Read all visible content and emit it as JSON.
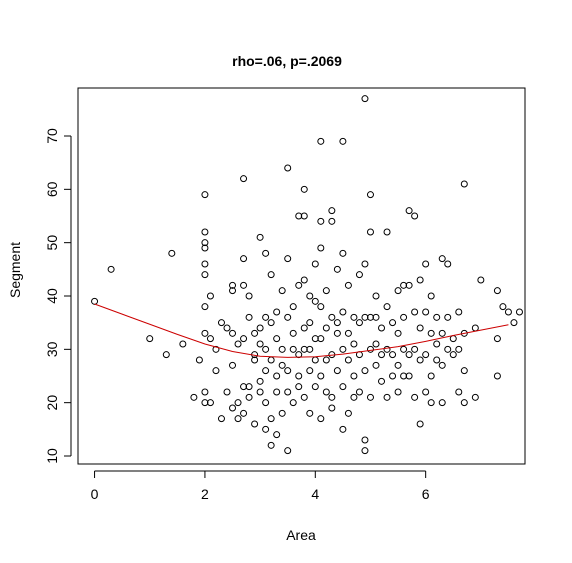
{
  "chart_data": {
    "type": "scatter",
    "title": "rho=.06, p=.2069",
    "xlabel": "Area",
    "ylabel": "Segment",
    "xlim": [
      -0.3,
      7.8
    ],
    "ylim": [
      8.5,
      79
    ],
    "xticks": [
      0,
      2,
      4,
      6
    ],
    "yticks": [
      10,
      20,
      30,
      40,
      50,
      60,
      70
    ],
    "grid": false,
    "legend": "none",
    "marker": "open-circle",
    "colors": {
      "points": "#000000",
      "smooth": "#cc0000",
      "frame": "#000000"
    },
    "points": [
      [
        0.0,
        39
      ],
      [
        0.3,
        45
      ],
      [
        1.0,
        32
      ],
      [
        1.3,
        29
      ],
      [
        1.4,
        48
      ],
      [
        1.6,
        31
      ],
      [
        1.8,
        21
      ],
      [
        1.9,
        28
      ],
      [
        2.0,
        59
      ],
      [
        2.0,
        52
      ],
      [
        2.0,
        50
      ],
      [
        2.0,
        49
      ],
      [
        2.0,
        46
      ],
      [
        2.0,
        44
      ],
      [
        2.0,
        38
      ],
      [
        2.0,
        33
      ],
      [
        2.0,
        22
      ],
      [
        2.0,
        20
      ],
      [
        2.1,
        20
      ],
      [
        2.1,
        40
      ],
      [
        2.1,
        32
      ],
      [
        2.2,
        26
      ],
      [
        2.2,
        30
      ],
      [
        2.3,
        35
      ],
      [
        2.3,
        17
      ],
      [
        2.4,
        22
      ],
      [
        2.4,
        34
      ],
      [
        2.5,
        42
      ],
      [
        2.5,
        41
      ],
      [
        2.5,
        33
      ],
      [
        2.5,
        27
      ],
      [
        2.5,
        19
      ],
      [
        2.6,
        31
      ],
      [
        2.6,
        17
      ],
      [
        2.6,
        20
      ],
      [
        2.7,
        62
      ],
      [
        2.7,
        47
      ],
      [
        2.7,
        42
      ],
      [
        2.7,
        32
      ],
      [
        2.7,
        23
      ],
      [
        2.7,
        18
      ],
      [
        2.8,
        40
      ],
      [
        2.8,
        36
      ],
      [
        2.8,
        23
      ],
      [
        2.8,
        21
      ],
      [
        2.9,
        29
      ],
      [
        2.9,
        28
      ],
      [
        2.9,
        33
      ],
      [
        2.9,
        16
      ],
      [
        3.0,
        51
      ],
      [
        3.0,
        31
      ],
      [
        3.0,
        24
      ],
      [
        3.0,
        34
      ],
      [
        3.0,
        22
      ],
      [
        3.1,
        48
      ],
      [
        3.1,
        30
      ],
      [
        3.1,
        26
      ],
      [
        3.1,
        20
      ],
      [
        3.1,
        36
      ],
      [
        3.1,
        15
      ],
      [
        3.2,
        44
      ],
      [
        3.2,
        35
      ],
      [
        3.2,
        28
      ],
      [
        3.2,
        17
      ],
      [
        3.2,
        12
      ],
      [
        3.3,
        32
      ],
      [
        3.3,
        37
      ],
      [
        3.3,
        25
      ],
      [
        3.3,
        22
      ],
      [
        3.3,
        14
      ],
      [
        3.4,
        30
      ],
      [
        3.4,
        18
      ],
      [
        3.4,
        27
      ],
      [
        3.4,
        41
      ],
      [
        3.5,
        64
      ],
      [
        3.5,
        47
      ],
      [
        3.5,
        36
      ],
      [
        3.5,
        26
      ],
      [
        3.5,
        22
      ],
      [
        3.5,
        11
      ],
      [
        3.6,
        30
      ],
      [
        3.6,
        33
      ],
      [
        3.6,
        20
      ],
      [
        3.6,
        38
      ],
      [
        3.7,
        55
      ],
      [
        3.7,
        42
      ],
      [
        3.7,
        25
      ],
      [
        3.7,
        29
      ],
      [
        3.7,
        23
      ],
      [
        3.8,
        55
      ],
      [
        3.8,
        60
      ],
      [
        3.8,
        34
      ],
      [
        3.8,
        21
      ],
      [
        3.8,
        43
      ],
      [
        3.8,
        30
      ],
      [
        3.9,
        40
      ],
      [
        3.9,
        35
      ],
      [
        3.9,
        26
      ],
      [
        3.9,
        18
      ],
      [
        3.9,
        30
      ],
      [
        4.0,
        46
      ],
      [
        4.0,
        32
      ],
      [
        4.0,
        28
      ],
      [
        4.0,
        23
      ],
      [
        4.0,
        39
      ],
      [
        4.1,
        69
      ],
      [
        4.1,
        54
      ],
      [
        4.1,
        49
      ],
      [
        4.1,
        38
      ],
      [
        4.1,
        32
      ],
      [
        4.1,
        25
      ],
      [
        4.1,
        17
      ],
      [
        4.2,
        41
      ],
      [
        4.2,
        28
      ],
      [
        4.2,
        22
      ],
      [
        4.2,
        34
      ],
      [
        4.3,
        56
      ],
      [
        4.3,
        54
      ],
      [
        4.3,
        36
      ],
      [
        4.3,
        29
      ],
      [
        4.3,
        21
      ],
      [
        4.3,
        19
      ],
      [
        4.4,
        35
      ],
      [
        4.4,
        26
      ],
      [
        4.4,
        33
      ],
      [
        4.4,
        45
      ],
      [
        4.5,
        69
      ],
      [
        4.5,
        48
      ],
      [
        4.5,
        37
      ],
      [
        4.5,
        30
      ],
      [
        4.5,
        23
      ],
      [
        4.5,
        15
      ],
      [
        4.6,
        42
      ],
      [
        4.6,
        28
      ],
      [
        4.6,
        33
      ],
      [
        4.6,
        18
      ],
      [
        4.7,
        36
      ],
      [
        4.7,
        25
      ],
      [
        4.7,
        31
      ],
      [
        4.7,
        21
      ],
      [
        4.8,
        44
      ],
      [
        4.8,
        35
      ],
      [
        4.8,
        29
      ],
      [
        4.8,
        22
      ],
      [
        4.9,
        77
      ],
      [
        4.9,
        46
      ],
      [
        4.9,
        36
      ],
      [
        4.9,
        26
      ],
      [
        4.9,
        13
      ],
      [
        4.9,
        11
      ],
      [
        5.0,
        59
      ],
      [
        5.0,
        52
      ],
      [
        5.0,
        36
      ],
      [
        5.0,
        30
      ],
      [
        5.0,
        21
      ],
      [
        5.1,
        40
      ],
      [
        5.1,
        31
      ],
      [
        5.1,
        27
      ],
      [
        5.1,
        36
      ],
      [
        5.2,
        29
      ],
      [
        5.2,
        24
      ],
      [
        5.2,
        34
      ],
      [
        5.3,
        52
      ],
      [
        5.3,
        38
      ],
      [
        5.3,
        30
      ],
      [
        5.3,
        21
      ],
      [
        5.4,
        35
      ],
      [
        5.4,
        25
      ],
      [
        5.4,
        29
      ],
      [
        5.5,
        41
      ],
      [
        5.5,
        33
      ],
      [
        5.5,
        27
      ],
      [
        5.5,
        22
      ],
      [
        5.6,
        42
      ],
      [
        5.6,
        36
      ],
      [
        5.6,
        30
      ],
      [
        5.6,
        25
      ],
      [
        5.7,
        56
      ],
      [
        5.7,
        42
      ],
      [
        5.7,
        29
      ],
      [
        5.7,
        25
      ],
      [
        5.8,
        55
      ],
      [
        5.8,
        37
      ],
      [
        5.8,
        30
      ],
      [
        5.8,
        21
      ],
      [
        5.9,
        43
      ],
      [
        5.9,
        34
      ],
      [
        5.9,
        28
      ],
      [
        5.9,
        16
      ],
      [
        6.0,
        46
      ],
      [
        6.0,
        37
      ],
      [
        6.0,
        29
      ],
      [
        6.0,
        22
      ],
      [
        6.1,
        40
      ],
      [
        6.1,
        33
      ],
      [
        6.1,
        25
      ],
      [
        6.1,
        20
      ],
      [
        6.2,
        36
      ],
      [
        6.2,
        31
      ],
      [
        6.2,
        28
      ],
      [
        6.3,
        47
      ],
      [
        6.3,
        33
      ],
      [
        6.3,
        27
      ],
      [
        6.3,
        20
      ],
      [
        6.4,
        46
      ],
      [
        6.4,
        36
      ],
      [
        6.4,
        30
      ],
      [
        6.5,
        32
      ],
      [
        6.5,
        29
      ],
      [
        6.6,
        37
      ],
      [
        6.6,
        30
      ],
      [
        6.6,
        22
      ],
      [
        6.7,
        61
      ],
      [
        6.7,
        33
      ],
      [
        6.7,
        26
      ],
      [
        6.7,
        20
      ],
      [
        6.9,
        34
      ],
      [
        6.9,
        21
      ],
      [
        7.0,
        43
      ],
      [
        7.3,
        41
      ],
      [
        7.3,
        32
      ],
      [
        7.3,
        25
      ],
      [
        7.4,
        38
      ],
      [
        7.5,
        37
      ],
      [
        7.6,
        35
      ],
      [
        7.7,
        37
      ]
    ],
    "smooth": {
      "x": [
        0.0,
        0.5,
        1.0,
        1.5,
        2.0,
        2.5,
        3.0,
        3.5,
        4.0,
        4.5,
        5.0,
        5.5,
        6.0,
        6.5,
        7.0,
        7.5
      ],
      "y": [
        38.5,
        36.6,
        34.7,
        32.8,
        31.0,
        29.6,
        28.7,
        28.5,
        28.6,
        29.1,
        29.8,
        30.5,
        31.5,
        32.6,
        33.6,
        34.6
      ]
    }
  }
}
